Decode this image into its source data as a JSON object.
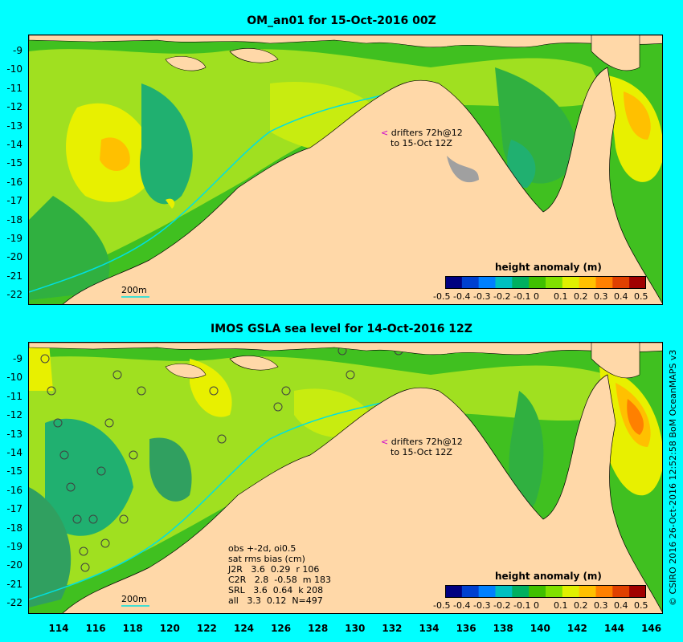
{
  "panels": [
    {
      "title": "OM_an01 for 15-Oct-2016 00Z",
      "drifters_line1": "drifters 72h@12",
      "drifters_line2": "to 15-Oct 12Z",
      "scale_label": "200m",
      "colorbar_title": "height anomaly (m)"
    },
    {
      "title": "IMOS GSLA sea level  for 14-Oct-2016 12Z",
      "drifters_line1": "drifters 72h@12",
      "drifters_line2": "to 15-Oct 12Z",
      "scale_label": "200m",
      "colorbar_title": "height anomaly (m)",
      "stats": [
        "obs +-2d, oi0.5",
        "sat rms bias (cm)",
        "J2R   3.6  0.29  r 106",
        "C2R   2.8  -0.58  m 183",
        "SRL   3.6  0.64  k 208",
        "all   3.3  0.12  N=497"
      ]
    }
  ],
  "lat_ticks": [
    "-9",
    "-10",
    "-11",
    "-12",
    "-13",
    "-14",
    "-15",
    "-16",
    "-17",
    "-18",
    "-19",
    "-20",
    "-21",
    "-22"
  ],
  "lon_ticks": [
    "114",
    "116",
    "118",
    "120",
    "122",
    "124",
    "126",
    "128",
    "130",
    "132",
    "134",
    "136",
    "138",
    "140",
    "142",
    "144",
    "146"
  ],
  "colorbar_ticks": [
    "-0.5",
    "-0.4",
    "-0.3",
    "-0.2",
    "-0.1",
    "0",
    "0.1",
    "0.2",
    "0.3",
    "0.4",
    "0.5"
  ],
  "colorbar_colors": [
    "#000080",
    "#0040d0",
    "#0080ff",
    "#00c0c0",
    "#00b060",
    "#40c000",
    "#80e000",
    "#e0f000",
    "#ffc000",
    "#ff8000",
    "#e04000",
    "#a00000"
  ],
  "credit": "© CSIRO 2016  26-Oct-2016 12:52:58 BoM OceanMAPS v3",
  "colors": {
    "background": "#00ffff",
    "land": "#ffd8a8",
    "shelf": "#00e0e0",
    "anomaly_green": "#40c020",
    "anomaly_lightgreen": "#a0e020",
    "anomaly_yellow": "#e8f000",
    "anomaly_orange": "#ffc000",
    "anomaly_teal": "#20b070",
    "drifter_arrow": "#cc00cc"
  }
}
